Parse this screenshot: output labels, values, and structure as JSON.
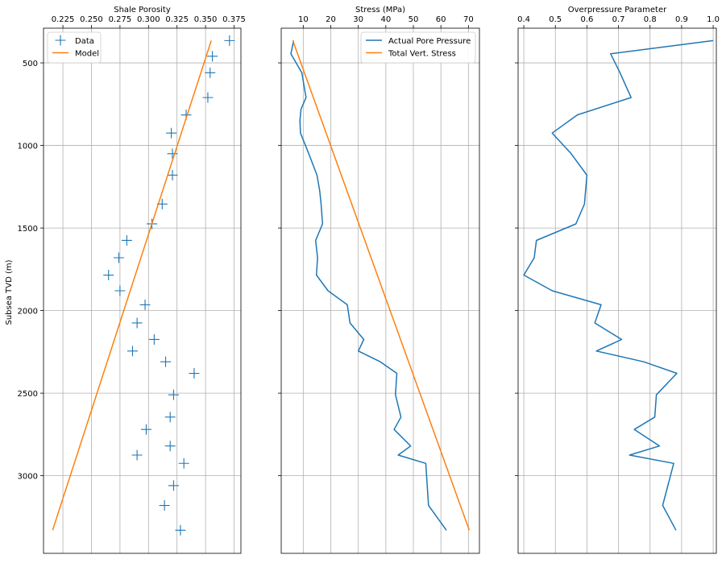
{
  "chart_data": [
    {
      "type": "scatter",
      "title": "Shale Porosity",
      "ylabel": "Subsea TVD (m)",
      "xlim": [
        0.208,
        0.381
      ],
      "ylim": [
        3470,
        290
      ],
      "yticks": [
        500,
        1000,
        1500,
        2000,
        2500,
        3000
      ],
      "xticks": [
        0.225,
        0.25,
        0.275,
        0.3,
        0.325,
        0.35,
        0.375
      ],
      "xtick_labels": [
        "0.225",
        "0.250",
        "0.275",
        "0.300",
        "0.325",
        "0.350",
        "0.375"
      ],
      "grid": true,
      "legend": "upper-left",
      "series": [
        {
          "name": "Data",
          "kind": "marker",
          "color": "#1f77b4",
          "x": [
            0.371,
            0.356,
            0.354,
            0.352,
            0.333,
            0.32,
            0.321,
            0.321,
            0.312,
            0.303,
            0.281,
            0.274,
            0.265,
            0.275,
            0.297,
            0.29,
            0.305,
            0.286,
            0.315,
            0.34,
            0.322,
            0.319,
            0.298,
            0.319,
            0.29,
            0.331,
            0.322,
            0.314,
            0.328
          ],
          "y": [
            365,
            460,
            560,
            710,
            815,
            925,
            1050,
            1180,
            1355,
            1475,
            1575,
            1680,
            1785,
            1880,
            1965,
            2075,
            2175,
            2245,
            2310,
            2380,
            2510,
            2645,
            2720,
            2820,
            2875,
            2925,
            3060,
            3180,
            3330
          ]
        },
        {
          "name": "Model",
          "kind": "line",
          "color": "#ff7f0e",
          "x": [
            0.355,
            0.216
          ],
          "y": [
            365,
            3330
          ]
        }
      ]
    },
    {
      "type": "line",
      "title": "Stress (MPa)",
      "xlim": [
        2.0,
        74.0
      ],
      "ylim": [
        3470,
        290
      ],
      "yticks": [
        500,
        1000,
        1500,
        2000,
        2500,
        3000
      ],
      "xticks": [
        10,
        20,
        30,
        40,
        50,
        60,
        70
      ],
      "xtick_labels": [
        "10",
        "20",
        "30",
        "40",
        "50",
        "60",
        "70"
      ],
      "grid": true,
      "legend": "upper-right",
      "series": [
        {
          "name": "Actual Pore Pressure",
          "color": "#1f77b4",
          "x": [
            6.5,
            5.5,
            9.5,
            11,
            9.2,
            8.8,
            9,
            12,
            15,
            16,
            16.5,
            17,
            14.5,
            15.2,
            14.8,
            19,
            26,
            27,
            32,
            30,
            38,
            44,
            43.5,
            45.5,
            43,
            49,
            44.5,
            54.5,
            55.5,
            62
          ],
          "y": [
            365,
            445,
            560,
            710,
            780,
            850,
            925,
            1050,
            1180,
            1275,
            1355,
            1475,
            1575,
            1680,
            1785,
            1880,
            1965,
            2075,
            2175,
            2245,
            2310,
            2380,
            2510,
            2645,
            2720,
            2820,
            2875,
            2925,
            3180,
            3330
          ]
        },
        {
          "name": "Total Vert. Stress",
          "color": "#ff7f0e",
          "x": [
            6.2,
            70.3
          ],
          "y": [
            365,
            3330
          ]
        }
      ]
    },
    {
      "type": "line",
      "title": "Overpressure Parameter",
      "xlim": [
        0.382,
        1.01
      ],
      "ylim": [
        3470,
        290
      ],
      "yticks": [
        500,
        1000,
        1500,
        2000,
        2500,
        3000
      ],
      "xticks": [
        0.4,
        0.5,
        0.6,
        0.7,
        0.8,
        0.9,
        1.0
      ],
      "xtick_labels": [
        "0.4",
        "0.5",
        "0.6",
        "0.7",
        "0.8",
        "0.9",
        "1.0"
      ],
      "grid": true,
      "series": [
        {
          "name": "",
          "color": "#1f77b4",
          "x": [
            1.0,
            0.675,
            0.705,
            0.74,
            0.57,
            0.49,
            0.55,
            0.6,
            0.592,
            0.565,
            0.44,
            0.433,
            0.4,
            0.49,
            0.645,
            0.625,
            0.71,
            0.63,
            0.78,
            0.885,
            0.82,
            0.815,
            0.75,
            0.83,
            0.735,
            0.875,
            0.84,
            0.882
          ],
          "y": [
            365,
            445,
            560,
            710,
            815,
            925,
            1050,
            1180,
            1355,
            1475,
            1575,
            1680,
            1785,
            1880,
            1965,
            2075,
            2175,
            2245,
            2310,
            2380,
            2510,
            2645,
            2720,
            2820,
            2875,
            2925,
            3180,
            3330
          ]
        }
      ]
    }
  ]
}
